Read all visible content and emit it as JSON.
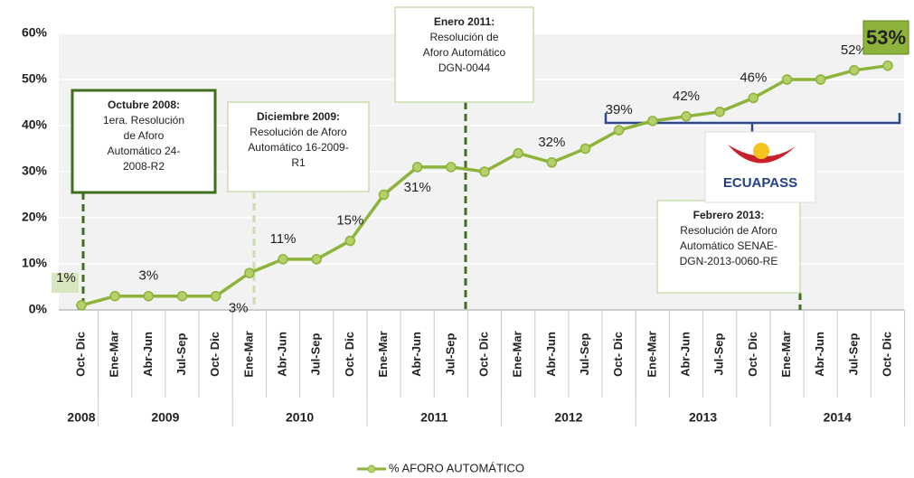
{
  "chart_data": {
    "type": "line",
    "categories": [
      "Oct- Dic",
      "Ene-Mar",
      "Abr-Jun",
      "Jul-Sep",
      "Oct- Dic",
      "Ene-Mar",
      "Abr-Jun",
      "Jul-Sep",
      "Oct- Dic",
      "Ene-Mar",
      "Abr-Jun",
      "Jul-Sep",
      "Oct- Dic",
      "Ene-Mar",
      "Abr-Jun",
      "Jul-Sep",
      "Oct- Dic",
      "Ene-Mar",
      "Abr-Jun",
      "Jul-Sep",
      "Oct- Dic",
      "Ene-Mar",
      "Abr-Jun",
      "Jul-Sep",
      "Oct- Dic"
    ],
    "years": [
      {
        "label": "2008",
        "count": 1
      },
      {
        "label": "2009",
        "count": 4
      },
      {
        "label": "2010",
        "count": 4
      },
      {
        "label": "2011",
        "count": 4
      },
      {
        "label": "2012",
        "count": 4
      },
      {
        "label": "2013",
        "count": 4
      },
      {
        "label": "2014",
        "count": 4
      }
    ],
    "series": [
      {
        "name": "% AFORO AUTOMÁTICO",
        "color": "#8db33a",
        "values": [
          1,
          3,
          3,
          3,
          3,
          8,
          11,
          11,
          15,
          25,
          31,
          31,
          30,
          34,
          32,
          35,
          39,
          41,
          42,
          43,
          46,
          50,
          50,
          52,
          53
        ],
        "value_labels": [
          "1%",
          null,
          "3%",
          null,
          "3%",
          null,
          "11%",
          null,
          "15%",
          null,
          "31%",
          null,
          null,
          null,
          "32%",
          null,
          "39%",
          null,
          "42%",
          null,
          "46%",
          null,
          null,
          "52%",
          "53%"
        ]
      }
    ],
    "ylim": [
      0,
      60
    ],
    "yticks": [
      {
        "value": 0,
        "label": "0%"
      },
      {
        "value": 10,
        "label": "10%"
      },
      {
        "value": 20,
        "label": "20%"
      },
      {
        "value": 30,
        "label": "30%"
      },
      {
        "value": 40,
        "label": "40%"
      },
      {
        "value": 50,
        "label": "50%"
      },
      {
        "value": 60,
        "label": "60%"
      }
    ],
    "grid": true,
    "annotations": [
      {
        "title": "Octubre 2008:",
        "lines": [
          "1era. Resolución",
          "de Aforo",
          "Automático 24-",
          "2008-R2"
        ]
      },
      {
        "title": "Diciembre 2009:",
        "lines": [
          "Resolución de Aforo",
          "Automático 16-2009-",
          "R1"
        ]
      },
      {
        "title": "Enero 2011:",
        "lines": [
          "Resolución  de",
          "Aforo Automático",
          "DGN-0044"
        ]
      },
      {
        "title": "Febrero 2013:",
        "lines": [
          "Resolución de Aforo",
          "Automático SENAE-",
          "DGN-2013-0060-RE"
        ]
      }
    ],
    "logo": "ECUAPASS"
  }
}
